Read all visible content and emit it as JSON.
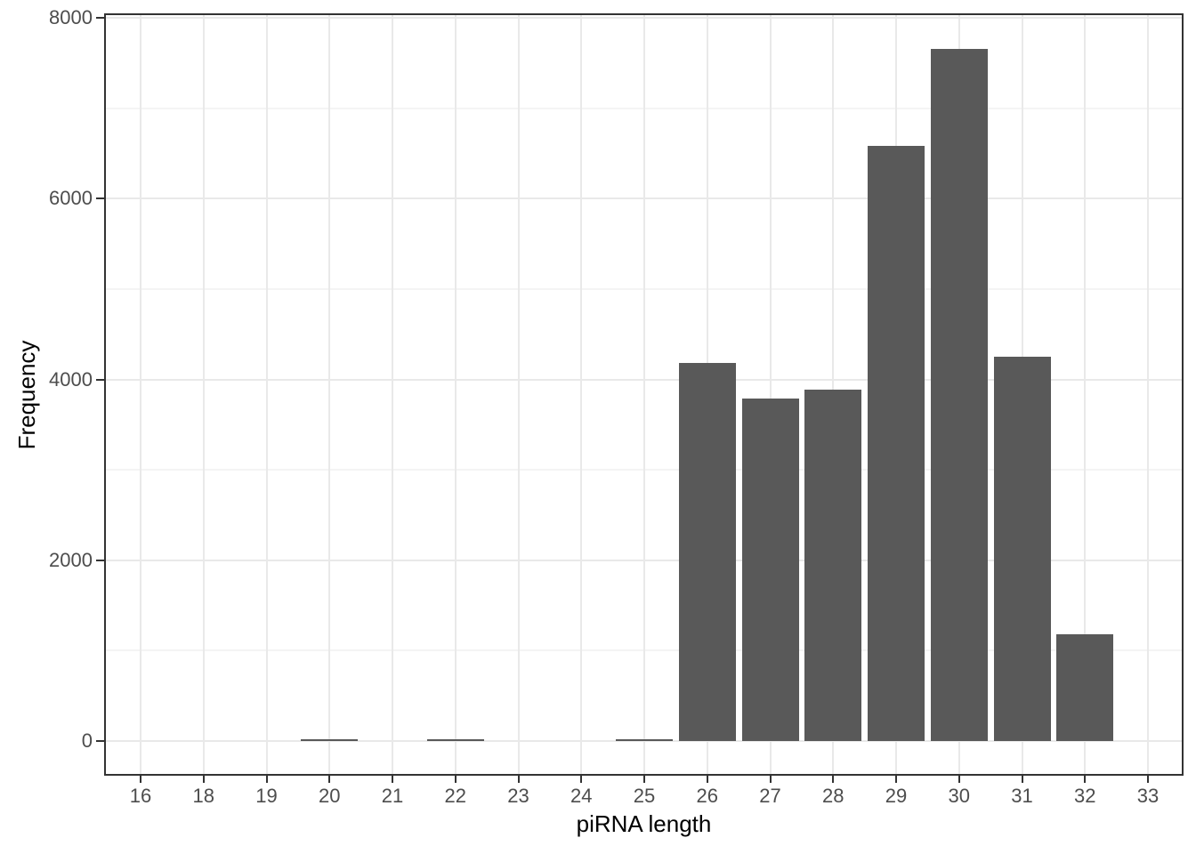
{
  "chart_data": {
    "type": "bar",
    "subtype": "histogram",
    "title": "",
    "xlabel": "piRNA length",
    "ylabel": "Frequency",
    "categories": [
      "16",
      "18",
      "19",
      "20",
      "21",
      "22",
      "23",
      "24",
      "25",
      "26",
      "27",
      "28",
      "29",
      "30",
      "31",
      "32",
      "33"
    ],
    "values": [
      0,
      0,
      0,
      20,
      0,
      20,
      0,
      0,
      20,
      4180,
      3790,
      3890,
      6580,
      7660,
      4250,
      1180,
      0
    ],
    "y_tick_labels": [
      "0",
      "2000",
      "4000",
      "6000",
      "8000"
    ],
    "y_major_ticks": [
      0,
      2000,
      4000,
      6000,
      8000
    ],
    "y_minor_ticks": [
      1000,
      3000,
      5000,
      7000
    ],
    "ylim": [
      0,
      8000
    ],
    "grid": "on",
    "legend": "none",
    "colors": {
      "bar_fill": "#595959",
      "panel_border": "#333333",
      "grid_major": "#e9e9e9",
      "grid_minor": "#f4f4f4",
      "tick_mark": "#333333",
      "tick_label": "#4d4d4d",
      "axis_title": "#000000",
      "background": "#ffffff"
    }
  }
}
